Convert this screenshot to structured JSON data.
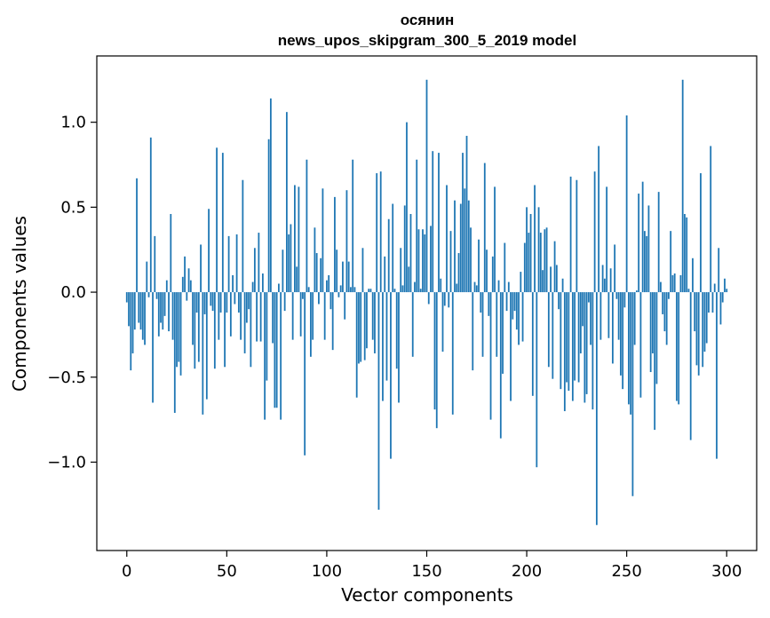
{
  "chart_data": {
    "type": "bar",
    "title_line1": "осянин",
    "title_line2": "news_upos_skipgram_300_5_2019 model",
    "xlabel": "Vector components",
    "ylabel": "Components values",
    "xlim": [
      -15,
      315
    ],
    "ylim": [
      -1.52,
      1.39
    ],
    "x_ticks": [
      0,
      50,
      100,
      150,
      200,
      250,
      300
    ],
    "x_tick_labels": [
      "0",
      "50",
      "100",
      "150",
      "200",
      "250",
      "300"
    ],
    "y_ticks": [
      -1.0,
      -0.5,
      0.0,
      0.5,
      1.0
    ],
    "y_tick_labels": [
      "−1.0",
      "−0.5",
      "0.0",
      "0.5",
      "1.0"
    ],
    "grid": false,
    "bar_color": "#1f77b4",
    "values": [
      -0.06,
      -0.2,
      -0.46,
      -0.36,
      -0.22,
      0.67,
      -0.18,
      -0.22,
      -0.28,
      -0.31,
      0.18,
      -0.03,
      0.91,
      -0.65,
      0.33,
      -0.04,
      -0.26,
      -0.18,
      -0.22,
      -0.14,
      0.07,
      -0.23,
      0.46,
      -0.28,
      -0.71,
      -0.44,
      -0.41,
      -0.49,
      0.09,
      0.21,
      -0.05,
      0.14,
      0.07,
      -0.31,
      -0.45,
      -0.12,
      -0.41,
      0.28,
      -0.72,
      -0.13,
      -0.63,
      0.49,
      -0.08,
      -0.11,
      -0.45,
      0.85,
      -0.28,
      -0.12,
      0.82,
      -0.44,
      -0.12,
      0.33,
      -0.26,
      0.1,
      -0.07,
      0.34,
      -0.12,
      -0.28,
      0.66,
      -0.36,
      -0.18,
      -0.1,
      -0.44,
      0.06,
      0.26,
      -0.29,
      0.35,
      -0.29,
      0.11,
      -0.75,
      -0.52,
      0.9,
      1.14,
      -0.3,
      -0.68,
      -0.68,
      0.05,
      -0.75,
      0.25,
      -0.11,
      1.06,
      0.34,
      0.4,
      -0.28,
      0.63,
      0.15,
      0.62,
      -0.26,
      -0.04,
      -0.96,
      0.78,
      0.03,
      -0.38,
      -0.28,
      0.38,
      0.23,
      -0.07,
      0.2,
      0.61,
      -0.28,
      0.07,
      0.1,
      -0.1,
      -0.34,
      0.56,
      0.25,
      -0.03,
      0.04,
      0.18,
      -0.16,
      0.6,
      0.18,
      0.03,
      0.78,
      0.03,
      -0.62,
      -0.42,
      -0.41,
      0.26,
      -0.4,
      -0.33,
      0.02,
      0.02,
      -0.28,
      -0.36,
      0.7,
      -1.28,
      0.71,
      -0.64,
      0.21,
      -0.52,
      0.43,
      -0.98,
      0.52,
      0.02,
      -0.45,
      -0.65,
      0.26,
      0.04,
      0.51,
      1.0,
      0.15,
      0.46,
      -0.38,
      0.06,
      0.78,
      0.37,
      0.02,
      0.37,
      0.34,
      1.25,
      -0.07,
      0.39,
      0.83,
      -0.69,
      -0.8,
      0.82,
      0.08,
      -0.35,
      -0.08,
      0.63,
      -0.09,
      0.36,
      -0.72,
      0.54,
      0.05,
      0.23,
      0.52,
      0.82,
      0.61,
      0.92,
      0.54,
      0.38,
      -0.46,
      0.06,
      0.04,
      0.31,
      -0.12,
      -0.38,
      0.76,
      0.25,
      -0.14,
      -0.75,
      0.21,
      0.62,
      -0.38,
      0.07,
      -0.86,
      -0.48,
      0.29,
      -0.11,
      0.06,
      -0.64,
      -0.16,
      -0.11,
      -0.22,
      -0.31,
      0.12,
      -0.29,
      0.29,
      0.5,
      0.35,
      0.46,
      -0.61,
      0.63,
      -1.03,
      0.5,
      0.35,
      0.13,
      0.37,
      0.38,
      -0.44,
      0.15,
      -0.51,
      0.3,
      0.16,
      -0.1,
      -0.57,
      0.08,
      -0.7,
      -0.53,
      -0.58,
      0.68,
      -0.64,
      -0.52,
      0.66,
      -0.53,
      -0.36,
      -0.2,
      -0.65,
      -0.6,
      -0.06,
      -0.31,
      -0.69,
      0.71,
      -1.37,
      0.86,
      -0.28,
      0.16,
      0.08,
      0.62,
      -0.27,
      0.14,
      -0.42,
      0.28,
      -0.04,
      -0.28,
      -0.49,
      -0.57,
      -0.09,
      1.04,
      -0.66,
      -0.72,
      -1.2,
      -0.31,
      0.01,
      0.58,
      -0.62,
      0.65,
      0.36,
      0.33,
      0.51,
      -0.47,
      -0.36,
      -0.81,
      -0.54,
      0.59,
      0.06,
      -0.13,
      -0.23,
      -0.31,
      -0.04,
      0.36,
      0.1,
      0.11,
      -0.64,
      -0.66,
      0.1,
      1.25,
      0.46,
      0.44,
      0.02,
      -0.87,
      0.2,
      -0.23,
      -0.43,
      -0.49,
      0.7,
      -0.44,
      -0.35,
      -0.3,
      -0.12,
      0.86,
      -0.12,
      0.05,
      -0.98,
      0.26,
      -0.19,
      -0.06,
      0.08,
      0.02
    ]
  }
}
